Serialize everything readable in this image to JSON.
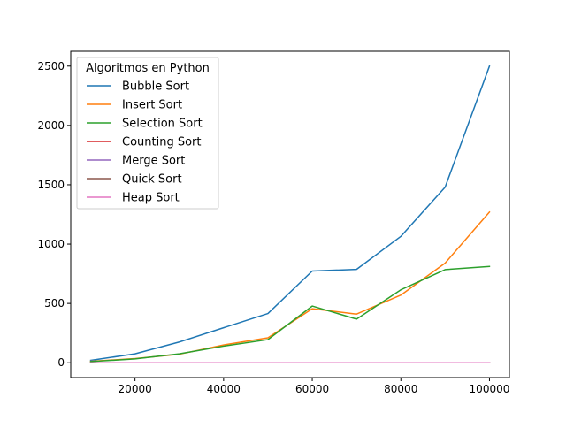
{
  "chart_data": {
    "type": "line",
    "title": "",
    "xlabel": "",
    "ylabel": "",
    "x": [
      10000,
      20000,
      30000,
      40000,
      50000,
      60000,
      70000,
      80000,
      90000,
      100000
    ],
    "xlim": [
      5500,
      104500
    ],
    "ylim": [
      -125,
      2625
    ],
    "xticks": [
      20000,
      40000,
      60000,
      80000,
      100000
    ],
    "yticks": [
      0,
      500,
      1000,
      1500,
      2000,
      2500
    ],
    "grid": false,
    "legend": {
      "title": "Algoritmos en Python",
      "placement": "top-left"
    },
    "series": [
      {
        "name": "Bubble Sort",
        "color": "#1f77b4",
        "values": [
          20,
          75,
          175,
          295,
          415,
          773,
          787,
          1065,
          1480,
          2500
        ]
      },
      {
        "name": "Insert Sort",
        "color": "#ff7f0e",
        "values": [
          12,
          35,
          72,
          150,
          210,
          455,
          410,
          570,
          840,
          1270
        ]
      },
      {
        "name": "Selection Sort",
        "color": "#2ca02c",
        "values": [
          10,
          32,
          75,
          140,
          195,
          478,
          368,
          615,
          785,
          812
        ]
      },
      {
        "name": "Counting Sort",
        "color": "#d62728",
        "values": [
          0,
          0,
          0,
          0,
          0,
          0,
          0,
          0,
          0,
          0
        ]
      },
      {
        "name": "Merge Sort",
        "color": "#9467bd",
        "values": [
          0,
          0,
          0,
          0,
          0,
          0,
          0,
          0,
          0,
          0
        ]
      },
      {
        "name": "Quick Sort",
        "color": "#8c564b",
        "values": [
          0,
          0,
          0,
          0,
          0,
          0,
          0,
          0,
          0,
          0
        ]
      },
      {
        "name": "Heap Sort",
        "color": "#e377c2",
        "values": [
          0,
          0,
          0,
          0,
          0,
          0,
          0,
          0,
          0,
          0
        ]
      }
    ]
  }
}
